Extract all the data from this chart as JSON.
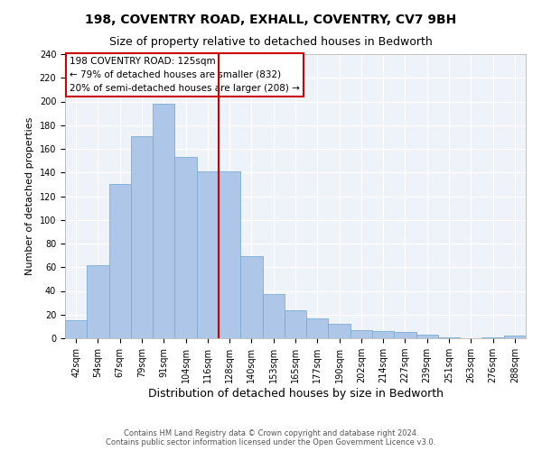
{
  "title": "198, COVENTRY ROAD, EXHALL, COVENTRY, CV7 9BH",
  "subtitle": "Size of property relative to detached houses in Bedworth",
  "xlabel": "Distribution of detached houses by size in Bedworth",
  "ylabel": "Number of detached properties",
  "categories": [
    "42sqm",
    "54sqm",
    "67sqm",
    "79sqm",
    "91sqm",
    "104sqm",
    "116sqm",
    "128sqm",
    "140sqm",
    "153sqm",
    "165sqm",
    "177sqm",
    "190sqm",
    "202sqm",
    "214sqm",
    "227sqm",
    "239sqm",
    "251sqm",
    "263sqm",
    "276sqm",
    "288sqm"
  ],
  "values": [
    15,
    62,
    130,
    171,
    198,
    153,
    141,
    141,
    69,
    37,
    24,
    17,
    12,
    7,
    6,
    5,
    3,
    1,
    0,
    1,
    2
  ],
  "bar_color": "#aec6e8",
  "bar_edge_color": "#7aadd4",
  "vline_x": 6.5,
  "vline_color": "#cc0000",
  "annotation_line1": "198 COVENTRY ROAD: 125sqm",
  "annotation_line2": "← 79% of detached houses are smaller (832)",
  "annotation_line3": "20% of semi-detached houses are larger (208) →",
  "annotation_box_color": "#ffffff",
  "annotation_box_edge": "#cc0000",
  "ylim": [
    0,
    240
  ],
  "yticks": [
    0,
    20,
    40,
    60,
    80,
    100,
    120,
    140,
    160,
    180,
    200,
    220,
    240
  ],
  "bg_color": "#eef3f9",
  "footer_line1": "Contains HM Land Registry data © Crown copyright and database right 2024.",
  "footer_line2": "Contains public sector information licensed under the Open Government Licence v3.0.",
  "title_fontsize": 10,
  "subtitle_fontsize": 9,
  "xlabel_fontsize": 9,
  "ylabel_fontsize": 8,
  "tick_fontsize": 7,
  "ann_fontsize": 7.5,
  "footer_fontsize": 6
}
